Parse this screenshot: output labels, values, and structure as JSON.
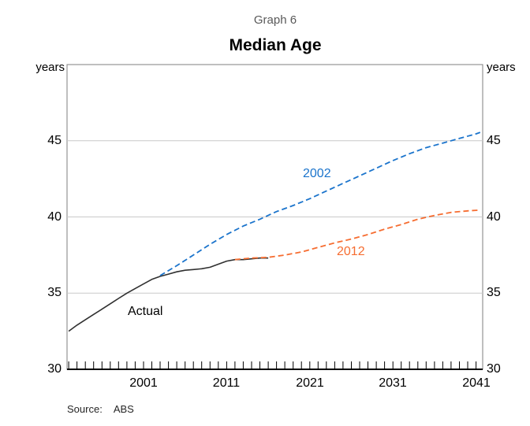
{
  "page": {
    "graph_number": "Graph 6",
    "title": "Median Age",
    "unit_left": "years",
    "unit_right": "years",
    "source_label": "Source:",
    "source_value": "ABS"
  },
  "colors": {
    "frame": "#7f7f7f",
    "gridline": "#c9c9c9",
    "axis": "#000000",
    "title_gray": "#595959",
    "actual_line": "#303030",
    "projection_2002": "#1b74cc",
    "projection_2012": "#f66d31"
  },
  "chart_data": {
    "type": "line",
    "title": "Median Age",
    "subtitle": "Graph 6",
    "ylabel_left": "years",
    "ylabel_right": "years",
    "source": "ABS",
    "xlim": [
      1991.8,
      2041.8
    ],
    "ylim": [
      30,
      50
    ],
    "xticks": [
      2001,
      2011,
      2021,
      2031,
      2041
    ],
    "yticks": [
      30,
      35,
      40,
      45
    ],
    "gridlines": [
      35,
      40,
      45
    ],
    "grid": "horizontal",
    "legend_position": "inline-annotations",
    "series": [
      {
        "name": "Actual",
        "style": "solid",
        "color": "#303030",
        "points": [
          [
            1992,
            32.5
          ],
          [
            1993,
            32.9
          ],
          [
            1994,
            33.25
          ],
          [
            1995,
            33.6
          ],
          [
            1996,
            33.95
          ],
          [
            1997,
            34.3
          ],
          [
            1998,
            34.65
          ],
          [
            1999,
            35.0
          ],
          [
            2000,
            35.3
          ],
          [
            2001,
            35.6
          ],
          [
            2002,
            35.9
          ],
          [
            2003,
            36.1
          ],
          [
            2004,
            36.25
          ],
          [
            2005,
            36.4
          ],
          [
            2006,
            36.5
          ],
          [
            2007,
            36.55
          ],
          [
            2008,
            36.6
          ],
          [
            2009,
            36.7
          ],
          [
            2010,
            36.9
          ],
          [
            2011,
            37.1
          ],
          [
            2012,
            37.2
          ],
          [
            2013,
            37.2
          ],
          [
            2014,
            37.25
          ],
          [
            2015,
            37.3
          ],
          [
            2016,
            37.3
          ]
        ]
      },
      {
        "name": "2002",
        "style": "dashed",
        "color": "#1b74cc",
        "points": [
          [
            2003,
            36.15
          ],
          [
            2005,
            36.8
          ],
          [
            2007,
            37.5
          ],
          [
            2009,
            38.2
          ],
          [
            2011,
            38.85
          ],
          [
            2013,
            39.4
          ],
          [
            2015,
            39.85
          ],
          [
            2017,
            40.35
          ],
          [
            2019,
            40.75
          ],
          [
            2021,
            41.2
          ],
          [
            2023,
            41.7
          ],
          [
            2025,
            42.2
          ],
          [
            2027,
            42.7
          ],
          [
            2029,
            43.2
          ],
          [
            2031,
            43.7
          ],
          [
            2033,
            44.15
          ],
          [
            2035,
            44.55
          ],
          [
            2037,
            44.85
          ],
          [
            2039,
            45.15
          ],
          [
            2041,
            45.45
          ],
          [
            2041.5,
            45.55
          ]
        ]
      },
      {
        "name": "2012",
        "style": "dashed",
        "color": "#f66d31",
        "points": [
          [
            2012,
            37.2
          ],
          [
            2014,
            37.3
          ],
          [
            2016,
            37.35
          ],
          [
            2018,
            37.5
          ],
          [
            2020,
            37.7
          ],
          [
            2022,
            38.0
          ],
          [
            2024,
            38.3
          ],
          [
            2026,
            38.55
          ],
          [
            2028,
            38.85
          ],
          [
            2030,
            39.2
          ],
          [
            2032,
            39.5
          ],
          [
            2034,
            39.85
          ],
          [
            2036,
            40.1
          ],
          [
            2038,
            40.3
          ],
          [
            2040,
            40.4
          ],
          [
            2041.5,
            40.45
          ]
        ]
      }
    ]
  }
}
